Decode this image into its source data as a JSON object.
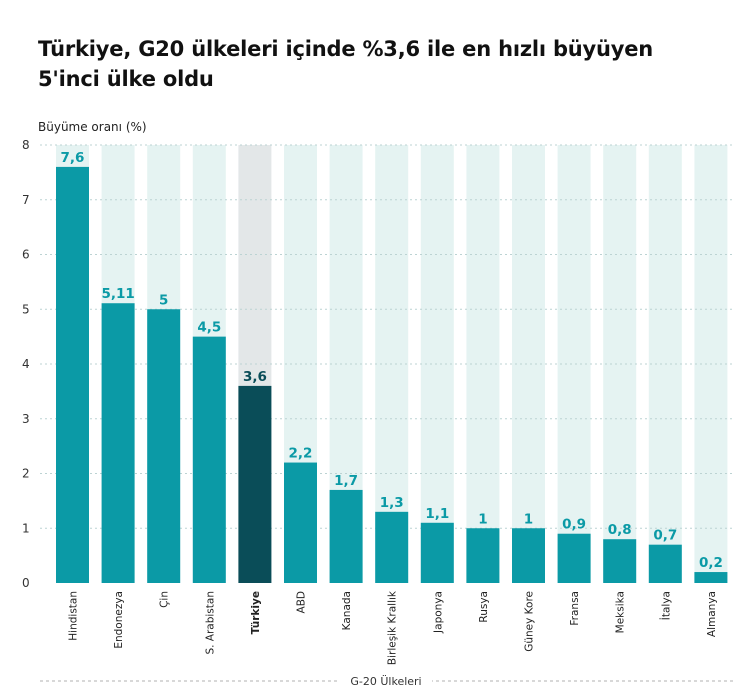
{
  "title": "Türkiye, G20 ülkeleri içinde %3,6 ile en hızlı büyüyen 5'inci ülke oldu",
  "chart_data": {
    "type": "bar",
    "title": "Türkiye, G20 ülkeleri içinde %3,6 ile en hızlı büyüyen 5'inci ülke oldu",
    "ylabel": "Büyüme oranı (%)",
    "xlabel": "G-20 Ülkeleri",
    "ylim": [
      0,
      8
    ],
    "yticks": [
      0,
      1,
      2,
      3,
      4,
      5,
      6,
      7,
      8
    ],
    "categories": [
      "Hindistan",
      "Endonezya",
      "Çin",
      "S. Arabistan",
      "Türkiye",
      "ABD",
      "Kanada",
      "Birleşik Krallık",
      "Japonya",
      "Rusya",
      "Güney Kore",
      "Fransa",
      "Meksika",
      "İtalya",
      "Almanya"
    ],
    "values": [
      7.6,
      5.11,
      5,
      4.5,
      3.6,
      2.2,
      1.7,
      1.3,
      1.1,
      1,
      1,
      0.9,
      0.8,
      0.7,
      0.2
    ],
    "value_labels": [
      "7,6",
      "5,11",
      "5",
      "4,5",
      "3,6",
      "2,2",
      "1,7",
      "1,3",
      "1,1",
      "1",
      "1",
      "0,9",
      "0,8",
      "0,7",
      "0,2"
    ],
    "highlight": "Türkiye",
    "colors": {
      "bar": "#0b9aa6",
      "bar_highlight": "#0a4d58",
      "column_bg": "#e5f3f2",
      "column_bg_highlight": "#e3e7e8",
      "label": "#0b9aa6",
      "label_highlight": "#0a4d58",
      "grid": "#bcd3d3"
    }
  }
}
